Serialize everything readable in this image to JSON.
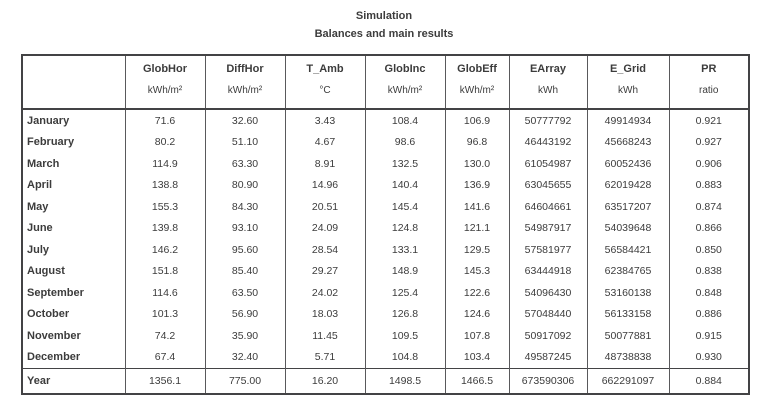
{
  "page": {
    "title_line1": "Simulation",
    "title_line2": "Balances and main results"
  },
  "table": {
    "columns": [
      {
        "label": "",
        "unit": ""
      },
      {
        "label": "GlobHor",
        "unit": "kWh/m²"
      },
      {
        "label": "DiffHor",
        "unit": "kWh/m²"
      },
      {
        "label": "T_Amb",
        "unit": "°C"
      },
      {
        "label": "GlobInc",
        "unit": "kWh/m²"
      },
      {
        "label": "GlobEff",
        "unit": "kWh/m²"
      },
      {
        "label": "EArray",
        "unit": "kWh"
      },
      {
        "label": "E_Grid",
        "unit": "kWh"
      },
      {
        "label": "PR",
        "unit": "ratio"
      }
    ],
    "rows": [
      {
        "label": "January",
        "values": [
          "71.6",
          "32.60",
          "3.43",
          "108.4",
          "106.9",
          "50777792",
          "49914934",
          "0.921"
        ]
      },
      {
        "label": "February",
        "values": [
          "80.2",
          "51.10",
          "4.67",
          "98.6",
          "96.8",
          "46443192",
          "45668243",
          "0.927"
        ]
      },
      {
        "label": "March",
        "values": [
          "114.9",
          "63.30",
          "8.91",
          "132.5",
          "130.0",
          "61054987",
          "60052436",
          "0.906"
        ]
      },
      {
        "label": "April",
        "values": [
          "138.8",
          "80.90",
          "14.96",
          "140.4",
          "136.9",
          "63045655",
          "62019428",
          "0.883"
        ]
      },
      {
        "label": "May",
        "values": [
          "155.3",
          "84.30",
          "20.51",
          "145.4",
          "141.6",
          "64604661",
          "63517207",
          "0.874"
        ]
      },
      {
        "label": "June",
        "values": [
          "139.8",
          "93.10",
          "24.09",
          "124.8",
          "121.1",
          "54987917",
          "54039648",
          "0.866"
        ]
      },
      {
        "label": "July",
        "values": [
          "146.2",
          "95.60",
          "28.54",
          "133.1",
          "129.5",
          "57581977",
          "56584421",
          "0.850"
        ]
      },
      {
        "label": "August",
        "values": [
          "151.8",
          "85.40",
          "29.27",
          "148.9",
          "145.3",
          "63444918",
          "62384765",
          "0.838"
        ]
      },
      {
        "label": "September",
        "values": [
          "114.6",
          "63.50",
          "24.02",
          "125.4",
          "122.6",
          "54096430",
          "53160138",
          "0.848"
        ]
      },
      {
        "label": "October",
        "values": [
          "101.3",
          "56.90",
          "18.03",
          "126.8",
          "124.6",
          "57048440",
          "56133158",
          "0.886"
        ]
      },
      {
        "label": "November",
        "values": [
          "74.2",
          "35.90",
          "11.45",
          "109.5",
          "107.8",
          "50917092",
          "50077881",
          "0.915"
        ]
      },
      {
        "label": "December",
        "values": [
          "67.4",
          "32.40",
          "5.71",
          "104.8",
          "103.4",
          "49587245",
          "48738838",
          "0.930"
        ]
      }
    ],
    "year_row": {
      "label": "Year",
      "values": [
        "1356.1",
        "775.00",
        "16.20",
        "1498.5",
        "1466.5",
        "673590306",
        "662291097",
        "0.884"
      ]
    }
  }
}
